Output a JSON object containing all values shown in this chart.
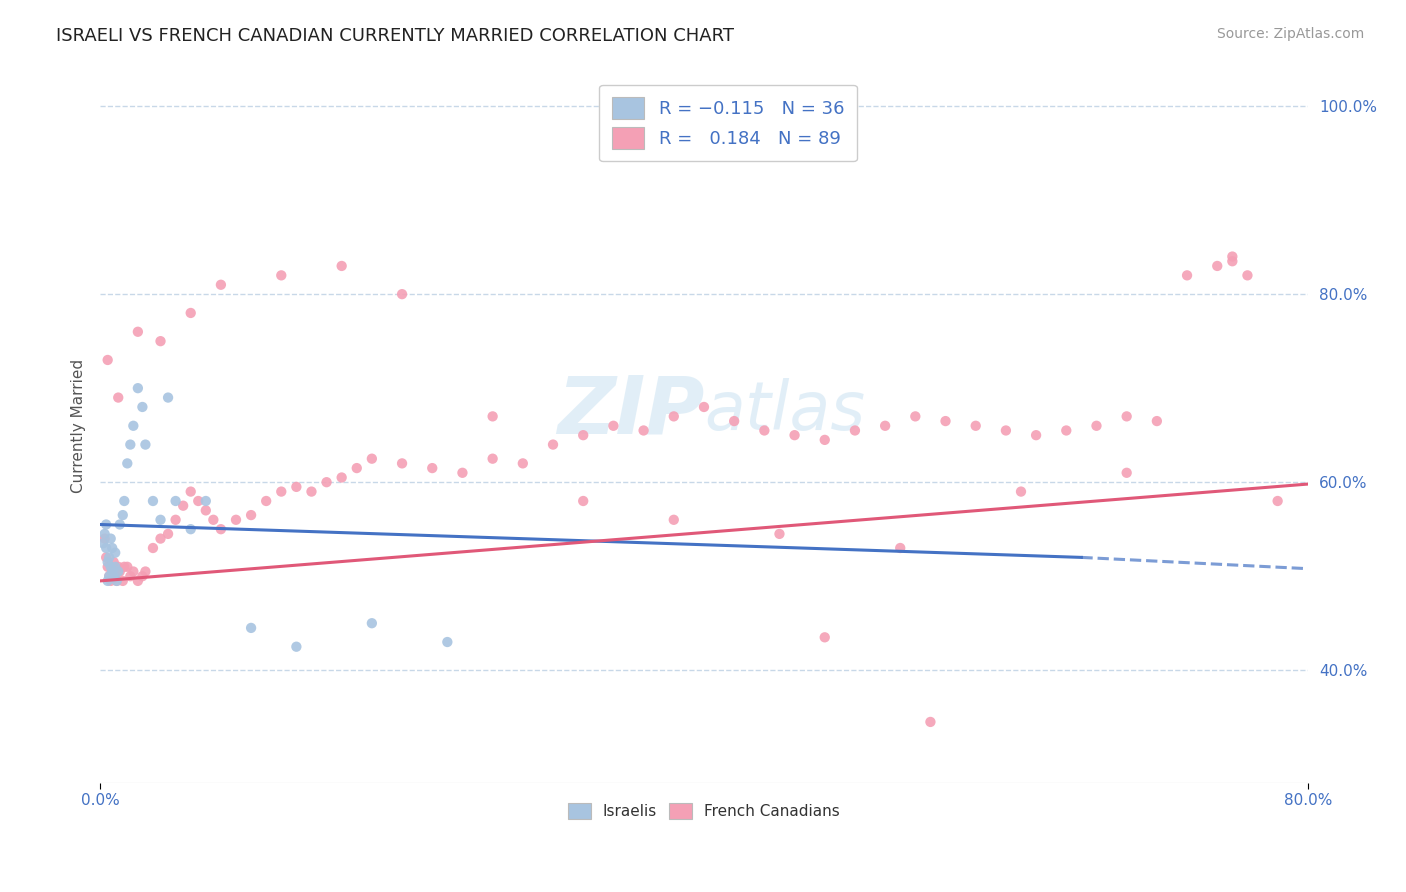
{
  "title": "ISRAELI VS FRENCH CANADIAN CURRENTLY MARRIED CORRELATION CHART",
  "source": "Source: ZipAtlas.com",
  "ylabel": "Currently Married",
  "xmin": 0.0,
  "xmax": 0.8,
  "ymin": 0.28,
  "ymax": 1.04,
  "r_israeli": -0.115,
  "n_israeli": 36,
  "r_french": 0.184,
  "n_french": 89,
  "israeli_color": "#a8c4e0",
  "french_color": "#f4a0b5",
  "trend_israeli_color": "#4472c4",
  "trend_french_color": "#e05878",
  "background_color": "#ffffff",
  "grid_color": "#c8d8e8",
  "yticks": [
    0.4,
    0.6,
    0.8,
    1.0
  ],
  "ytick_labels": [
    "40.0%",
    "60.0%",
    "80.0%",
    "100.0%"
  ],
  "israeli_x": [
    0.002,
    0.003,
    0.004,
    0.004,
    0.005,
    0.005,
    0.006,
    0.006,
    0.007,
    0.007,
    0.008,
    0.008,
    0.009,
    0.01,
    0.01,
    0.011,
    0.012,
    0.013,
    0.015,
    0.016,
    0.018,
    0.02,
    0.022,
    0.025,
    0.028,
    0.03,
    0.035,
    0.04,
    0.045,
    0.05,
    0.06,
    0.07,
    0.1,
    0.13,
    0.18,
    0.23
  ],
  "israeli_y": [
    0.535,
    0.545,
    0.53,
    0.555,
    0.495,
    0.515,
    0.5,
    0.52,
    0.51,
    0.54,
    0.505,
    0.53,
    0.5,
    0.51,
    0.525,
    0.495,
    0.505,
    0.555,
    0.565,
    0.58,
    0.62,
    0.64,
    0.66,
    0.7,
    0.68,
    0.64,
    0.58,
    0.56,
    0.69,
    0.58,
    0.55,
    0.58,
    0.445,
    0.425,
    0.45,
    0.43
  ],
  "french_x": [
    0.003,
    0.004,
    0.005,
    0.006,
    0.007,
    0.008,
    0.009,
    0.01,
    0.011,
    0.012,
    0.013,
    0.015,
    0.016,
    0.018,
    0.02,
    0.022,
    0.025,
    0.028,
    0.03,
    0.035,
    0.04,
    0.045,
    0.05,
    0.055,
    0.06,
    0.065,
    0.07,
    0.075,
    0.08,
    0.09,
    0.1,
    0.11,
    0.12,
    0.13,
    0.14,
    0.15,
    0.16,
    0.17,
    0.18,
    0.2,
    0.22,
    0.24,
    0.26,
    0.28,
    0.3,
    0.32,
    0.34,
    0.36,
    0.38,
    0.4,
    0.42,
    0.44,
    0.46,
    0.48,
    0.5,
    0.52,
    0.54,
    0.56,
    0.58,
    0.6,
    0.62,
    0.64,
    0.66,
    0.68,
    0.7,
    0.72,
    0.74,
    0.75,
    0.76,
    0.78,
    0.005,
    0.012,
    0.025,
    0.04,
    0.06,
    0.08,
    0.12,
    0.16,
    0.2,
    0.26,
    0.32,
    0.38,
    0.45,
    0.53,
    0.61,
    0.68,
    0.75,
    0.48,
    0.55
  ],
  "french_y": [
    0.54,
    0.52,
    0.51,
    0.5,
    0.495,
    0.505,
    0.515,
    0.5,
    0.495,
    0.51,
    0.505,
    0.495,
    0.51,
    0.51,
    0.5,
    0.505,
    0.495,
    0.5,
    0.505,
    0.53,
    0.54,
    0.545,
    0.56,
    0.575,
    0.59,
    0.58,
    0.57,
    0.56,
    0.55,
    0.56,
    0.565,
    0.58,
    0.59,
    0.595,
    0.59,
    0.6,
    0.605,
    0.615,
    0.625,
    0.62,
    0.615,
    0.61,
    0.625,
    0.62,
    0.64,
    0.65,
    0.66,
    0.655,
    0.67,
    0.68,
    0.665,
    0.655,
    0.65,
    0.645,
    0.655,
    0.66,
    0.67,
    0.665,
    0.66,
    0.655,
    0.65,
    0.655,
    0.66,
    0.67,
    0.665,
    0.82,
    0.83,
    0.84,
    0.82,
    0.58,
    0.73,
    0.69,
    0.76,
    0.75,
    0.78,
    0.81,
    0.82,
    0.83,
    0.8,
    0.67,
    0.58,
    0.56,
    0.545,
    0.53,
    0.59,
    0.61,
    0.835,
    0.435,
    0.345
  ],
  "isr_trend_x0": 0.0,
  "isr_trend_y0": 0.555,
  "isr_trend_x1": 0.65,
  "isr_trend_y1": 0.52,
  "isr_trend_x2": 0.8,
  "isr_trend_y2": 0.508,
  "fr_trend_x0": 0.0,
  "fr_trend_y0": 0.495,
  "fr_trend_x1": 0.8,
  "fr_trend_y1": 0.598
}
